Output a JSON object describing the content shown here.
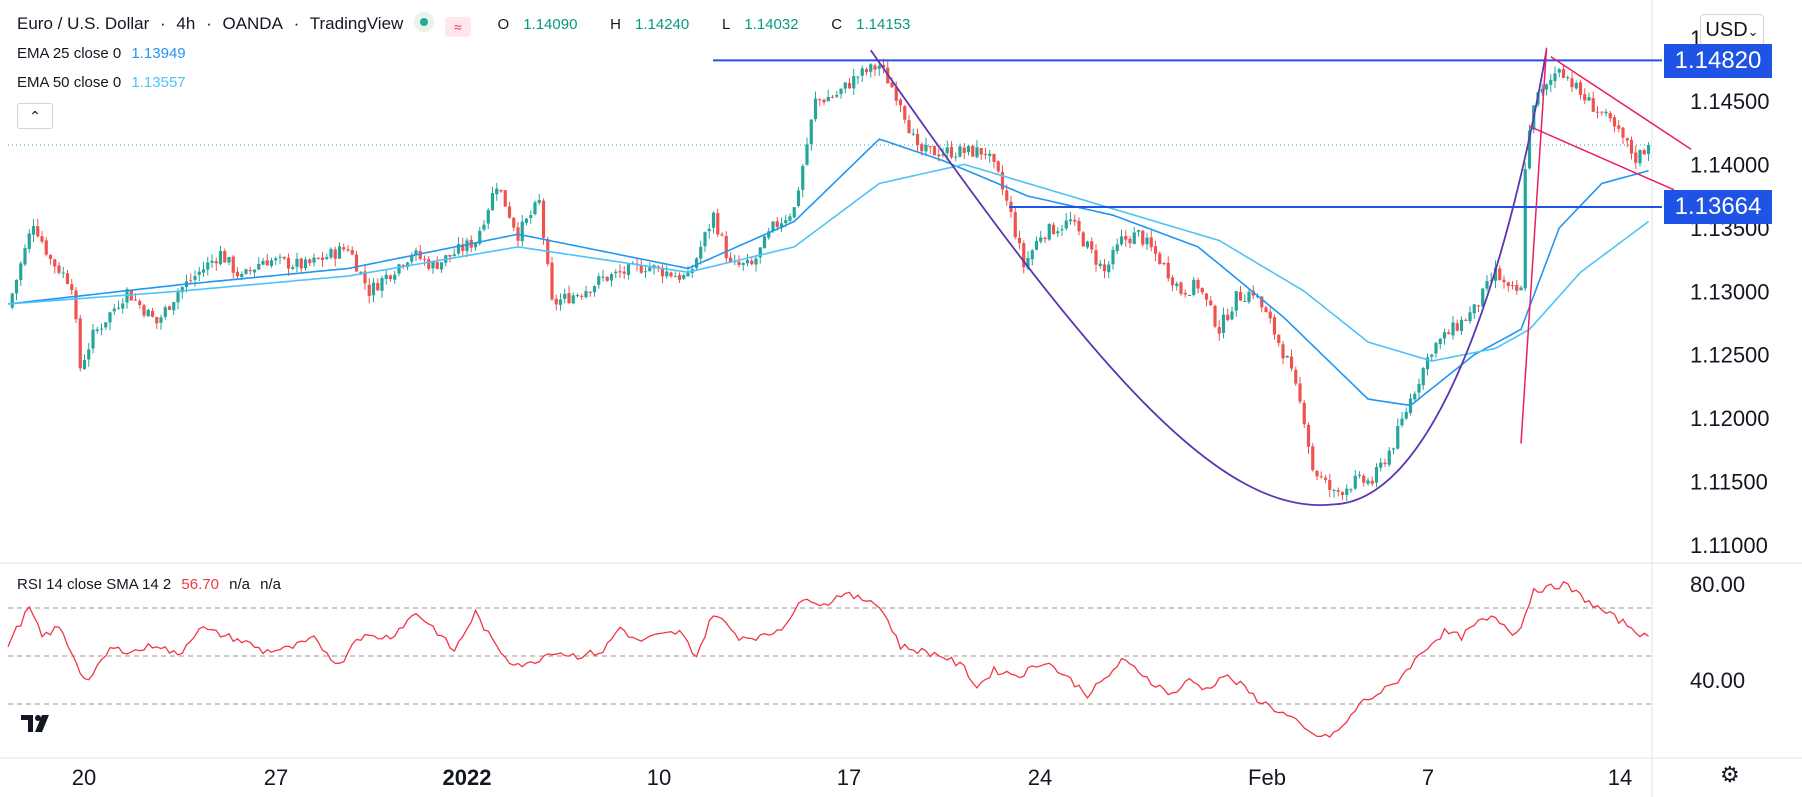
{
  "header": {
    "symbol": "Euro / U.S. Dollar",
    "separator": "·",
    "interval": "4h",
    "exchange": "OANDA",
    "source": "TradingView",
    "ohlc": {
      "o_label": "O",
      "o": "1.14090",
      "h_label": "H",
      "h": "1.14240",
      "l_label": "L",
      "l": "1.14032",
      "c_label": "C",
      "c": "1.14153"
    }
  },
  "indicators": [
    {
      "label": "EMA 25 close 0",
      "value": "1.13949",
      "color": "#2196f3"
    },
    {
      "label": "EMA 50 close 0",
      "value": "1.13557",
      "color": "#4fc3f7"
    }
  ],
  "currency": "USD",
  "rsi_legend": {
    "label": "RSI 14 close SMA 14 2",
    "value": "56.70",
    "na1": "n/a",
    "na2": "n/a"
  },
  "colors": {
    "up": "#26a69a",
    "down": "#ef5350",
    "level": "#1e53e5",
    "ema25": "#2196f3",
    "ema50": "#4fc3f7",
    "cup": "#5e35b1",
    "flag": "#e91e63",
    "rsi": "#f23645",
    "grid": "#e0e3eb"
  },
  "chart_data": [
    {
      "type": "candlestick",
      "title": "Euro / U.S. Dollar · 4h · OANDA",
      "x_ticks": [
        "20",
        "27",
        "2022",
        "10",
        "17",
        "24",
        "Feb",
        "7",
        "14"
      ],
      "y_ticks": [
        "1.11000",
        "1.11500",
        "1.12000",
        "1.12500",
        "1.13000",
        "1.13500",
        "1.14000",
        "1.14500"
      ],
      "y_top_label": "1.",
      "ylim": [
        1.1072,
        1.1517
      ],
      "horizontal_levels": [
        {
          "label": "1.14820",
          "value": 1.1482,
          "x_start_index": 180
        },
        {
          "label": "1.13664",
          "value": 1.13664,
          "x_start_index": 236
        }
      ],
      "last_close": 1.14153,
      "anchors": [
        [
          0,
          1.1287
        ],
        [
          6,
          1.1355
        ],
        [
          10,
          1.1325
        ],
        [
          15,
          1.1306
        ],
        [
          17,
          1.124
        ],
        [
          20,
          1.1265
        ],
        [
          28,
          1.13
        ],
        [
          35,
          1.1275
        ],
        [
          40,
          1.13
        ],
        [
          50,
          1.133
        ],
        [
          55,
          1.131
        ],
        [
          60,
          1.1325
        ],
        [
          70,
          1.132
        ],
        [
          80,
          1.1335
        ],
        [
          85,
          1.13
        ],
        [
          95,
          1.133
        ],
        [
          100,
          1.132
        ],
        [
          110,
          1.134
        ],
        [
          115,
          1.1385
        ],
        [
          120,
          1.1345
        ],
        [
          125,
          1.137
        ],
        [
          128,
          1.129
        ],
        [
          135,
          1.13
        ],
        [
          140,
          1.131
        ],
        [
          150,
          1.132
        ],
        [
          160,
          1.131
        ],
        [
          166,
          1.136
        ],
        [
          170,
          1.132
        ],
        [
          175,
          1.132
        ],
        [
          180,
          1.135
        ],
        [
          185,
          1.1365
        ],
        [
          190,
          1.145
        ],
        [
          195,
          1.1455
        ],
        [
          200,
          1.147
        ],
        [
          205,
          1.1478
        ],
        [
          210,
          1.145
        ],
        [
          214,
          1.141
        ],
        [
          220,
          1.141
        ],
        [
          225,
          1.141
        ],
        [
          230,
          1.141
        ],
        [
          233,
          1.139
        ],
        [
          236,
          1.136
        ],
        [
          239,
          1.132
        ],
        [
          243,
          1.1345
        ],
        [
          250,
          1.1355
        ],
        [
          254,
          1.1335
        ],
        [
          258,
          1.1315
        ],
        [
          262,
          1.134
        ],
        [
          266,
          1.1345
        ],
        [
          271,
          1.1325
        ],
        [
          276,
          1.13
        ],
        [
          280,
          1.1305
        ],
        [
          285,
          1.127
        ],
        [
          289,
          1.1295
        ],
        [
          293,
          1.13
        ],
        [
          297,
          1.1275
        ],
        [
          301,
          1.1245
        ],
        [
          305,
          1.12
        ],
        [
          307,
          1.116
        ],
        [
          312,
          1.114
        ],
        [
          317,
          1.115
        ],
        [
          321,
          1.115
        ],
        [
          326,
          1.118
        ],
        [
          330,
          1.1215
        ],
        [
          335,
          1.1255
        ],
        [
          340,
          1.127
        ],
        [
          345,
          1.1285
        ],
        [
          350,
          1.1315
        ],
        [
          353,
          1.13
        ],
        [
          356,
          1.13
        ],
        [
          357,
          1.14
        ],
        [
          359,
          1.145
        ],
        [
          362,
          1.146
        ],
        [
          365,
          1.1478
        ],
        [
          370,
          1.1455
        ],
        [
          375,
          1.144
        ],
        [
          380,
          1.142
        ],
        [
          383,
          1.1405
        ],
        [
          386,
          1.1415
        ]
      ],
      "series": [
        {
          "name": "EMA 25 close 0",
          "anchors": [
            [
              0,
              1.129
            ],
            [
              40,
              1.1305
            ],
            [
              80,
              1.1318
            ],
            [
              120,
              1.1345
            ],
            [
              160,
              1.1318
            ],
            [
              185,
              1.1355
            ],
            [
              205,
              1.142
            ],
            [
              220,
              1.1403
            ],
            [
              240,
              1.1375
            ],
            [
              260,
              1.136
            ],
            [
              280,
              1.1335
            ],
            [
              300,
              1.128
            ],
            [
              320,
              1.1215
            ],
            [
              330,
              1.121
            ],
            [
              345,
              1.125
            ],
            [
              356,
              1.127
            ],
            [
              365,
              1.135
            ],
            [
              375,
              1.1385
            ],
            [
              386,
              1.1395
            ]
          ]
        },
        {
          "name": "EMA 50 close 0",
          "anchors": [
            [
              0,
              1.129
            ],
            [
              40,
              1.13
            ],
            [
              80,
              1.1312
            ],
            [
              120,
              1.1335
            ],
            [
              160,
              1.1315
            ],
            [
              185,
              1.1335
            ],
            [
              205,
              1.1385
            ],
            [
              225,
              1.14
            ],
            [
              245,
              1.138
            ],
            [
              265,
              1.136
            ],
            [
              285,
              1.134
            ],
            [
              305,
              1.13
            ],
            [
              320,
              1.126
            ],
            [
              335,
              1.1245
            ],
            [
              350,
              1.1255
            ],
            [
              358,
              1.127
            ],
            [
              370,
              1.1315
            ],
            [
              386,
              1.1355
            ]
          ]
        }
      ]
    },
    {
      "type": "line",
      "title": "RSI 14 close SMA 14 2",
      "y_ticks": [
        "40.00",
        "80.00"
      ],
      "ylim": [
        10,
        90
      ],
      "levels": [
        30,
        50,
        70
      ],
      "anchors": [
        [
          0,
          55
        ],
        [
          5,
          70
        ],
        [
          8,
          58
        ],
        [
          12,
          62
        ],
        [
          16,
          48
        ],
        [
          18,
          40
        ],
        [
          20,
          42
        ],
        [
          24,
          53
        ],
        [
          30,
          52
        ],
        [
          35,
          55
        ],
        [
          40,
          50
        ],
        [
          45,
          62
        ],
        [
          48,
          60
        ],
        [
          52,
          58
        ],
        [
          57,
          55
        ],
        [
          60,
          52
        ],
        [
          66,
          53
        ],
        [
          72,
          57
        ],
        [
          78,
          46
        ],
        [
          82,
          58
        ],
        [
          90,
          58
        ],
        [
          96,
          68
        ],
        [
          100,
          62
        ],
        [
          105,
          52
        ],
        [
          110,
          68
        ],
        [
          114,
          56
        ],
        [
          118,
          48
        ],
        [
          122,
          46
        ],
        [
          128,
          52
        ],
        [
          134,
          50
        ],
        [
          140,
          52
        ],
        [
          144,
          62
        ],
        [
          148,
          56
        ],
        [
          152,
          58
        ],
        [
          158,
          60
        ],
        [
          162,
          50
        ],
        [
          166,
          68
        ],
        [
          172,
          58
        ],
        [
          178,
          58
        ],
        [
          182,
          62
        ],
        [
          188,
          75
        ],
        [
          192,
          71
        ],
        [
          196,
          76
        ],
        [
          200,
          74
        ],
        [
          204,
          73
        ],
        [
          207,
          65
        ],
        [
          210,
          54
        ],
        [
          215,
          52
        ],
        [
          220,
          50
        ],
        [
          225,
          45
        ],
        [
          228,
          37
        ],
        [
          232,
          44
        ],
        [
          238,
          42
        ],
        [
          244,
          48
        ],
        [
          250,
          40
        ],
        [
          254,
          34
        ],
        [
          258,
          40
        ],
        [
          262,
          48
        ],
        [
          266,
          44
        ],
        [
          270,
          38
        ],
        [
          274,
          34
        ],
        [
          278,
          40
        ],
        [
          282,
          36
        ],
        [
          286,
          42
        ],
        [
          290,
          38
        ],
        [
          294,
          32
        ],
        [
          298,
          28
        ],
        [
          302,
          24
        ],
        [
          306,
          18
        ],
        [
          310,
          16
        ],
        [
          314,
          20
        ],
        [
          318,
          30
        ],
        [
          322,
          34
        ],
        [
          326,
          38
        ],
        [
          330,
          46
        ],
        [
          334,
          54
        ],
        [
          338,
          60
        ],
        [
          342,
          58
        ],
        [
          346,
          64
        ],
        [
          350,
          66
        ],
        [
          354,
          60
        ],
        [
          356,
          62
        ],
        [
          359,
          78
        ],
        [
          362,
          78
        ],
        [
          366,
          80
        ],
        [
          370,
          75
        ],
        [
          374,
          70
        ],
        [
          378,
          66
        ],
        [
          382,
          62
        ],
        [
          386,
          57
        ]
      ]
    }
  ]
}
